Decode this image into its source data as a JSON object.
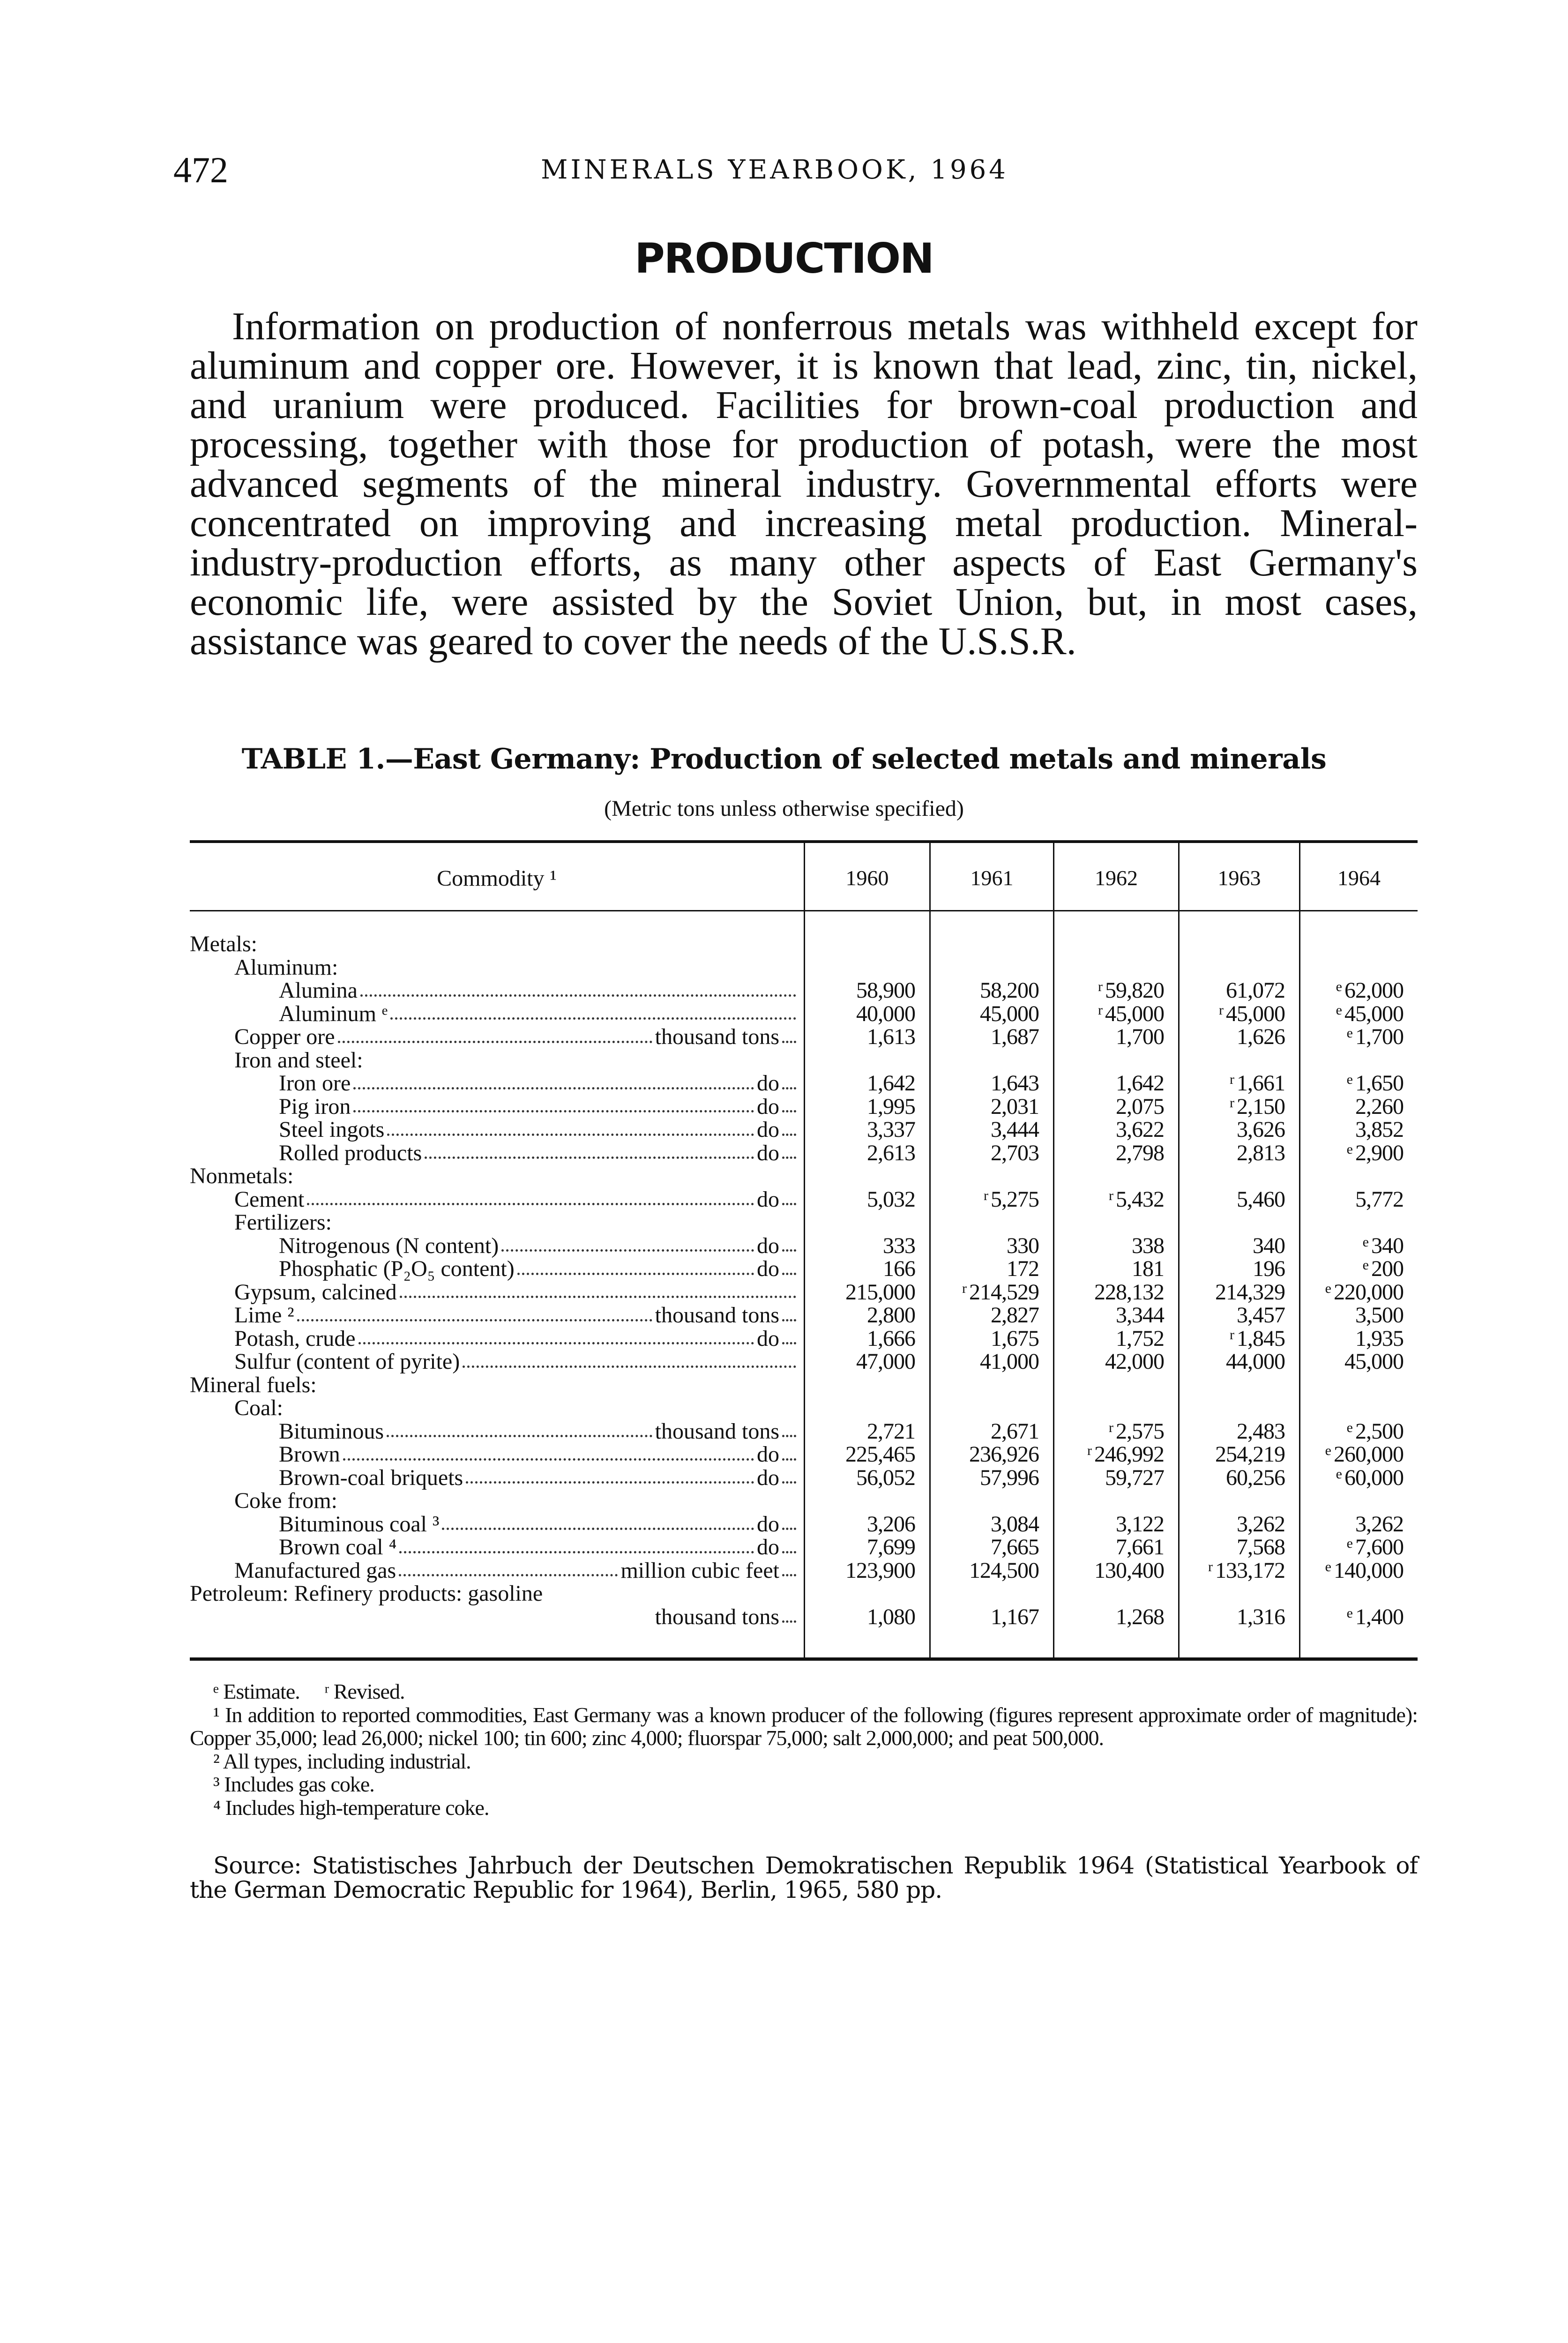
{
  "page": {
    "number": "472",
    "running_head": "MINERALS YEARBOOK, 1964",
    "section_heading": "PRODUCTION",
    "paragraph": "Information on production of nonferrous metals was withheld except for aluminum and copper ore. However, it is known that lead, zinc, tin, nickel, and uranium were produced. Facilities for brown-coal production and processing, together with those for production of potash, were the most advanced segments of the mineral industry. Governmental efforts were concentrated on improving and increasing metal production. Mineral-industry-production efforts, as many other aspects of East Germany's economic life, were assisted by the Soviet Union, but, in most cases, assistance was geared to cover the needs of the U.S.S.R."
  },
  "table": {
    "title": "TABLE 1.—East Germany: Production of selected metals and minerals",
    "subtitle": "(Metric tons unless otherwise specified)",
    "columns": [
      "Commodity ¹",
      "1960",
      "1961",
      "1962",
      "1963",
      "1964"
    ],
    "rows": [
      {
        "indent": 0,
        "label": "Metals:"
      },
      {
        "indent": 1,
        "label": "Aluminum:"
      },
      {
        "indent": 2,
        "label": "Alumina",
        "leader": true,
        "values": [
          "58,900",
          "58,200",
          "59,820",
          "61,072",
          "62,000"
        ],
        "marks": [
          "",
          "",
          "r",
          "",
          "e"
        ]
      },
      {
        "indent": 2,
        "label": "Aluminum ᵉ",
        "leader": true,
        "values": [
          "40,000",
          "45,000",
          "45,000",
          "45,000",
          "45,000"
        ],
        "marks": [
          "",
          "",
          "r",
          "r",
          "e"
        ]
      },
      {
        "indent": 1,
        "label": "Copper ore",
        "leader": true,
        "unit": "thousand tons",
        "values": [
          "1,613",
          "1,687",
          "1,700",
          "1,626",
          "1,700"
        ],
        "marks": [
          "",
          "",
          "",
          "",
          "e"
        ]
      },
      {
        "indent": 1,
        "label": "Iron and steel:"
      },
      {
        "indent": 2,
        "label": "Iron ore",
        "leader": true,
        "unit": "do",
        "values": [
          "1,642",
          "1,643",
          "1,642",
          "1,661",
          "1,650"
        ],
        "marks": [
          "",
          "",
          "",
          "r",
          "e"
        ]
      },
      {
        "indent": 2,
        "label": "Pig iron",
        "leader": true,
        "unit": "do",
        "values": [
          "1,995",
          "2,031",
          "2,075",
          "2,150",
          "2,260"
        ],
        "marks": [
          "",
          "",
          "",
          "r",
          ""
        ]
      },
      {
        "indent": 2,
        "label": "Steel ingots",
        "leader": true,
        "unit": "do",
        "values": [
          "3,337",
          "3,444",
          "3,622",
          "3,626",
          "3,852"
        ],
        "marks": [
          "",
          "",
          "",
          "",
          ""
        ]
      },
      {
        "indent": 2,
        "label": "Rolled products",
        "leader": true,
        "unit": "do",
        "values": [
          "2,613",
          "2,703",
          "2,798",
          "2,813",
          "2,900"
        ],
        "marks": [
          "",
          "",
          "",
          "",
          "e"
        ]
      },
      {
        "indent": 0,
        "label": "Nonmetals:"
      },
      {
        "indent": 1,
        "label": "Cement",
        "leader": true,
        "unit": "do",
        "values": [
          "5,032",
          "5,275",
          "5,432",
          "5,460",
          "5,772"
        ],
        "marks": [
          "",
          "r",
          "r",
          "",
          ""
        ]
      },
      {
        "indent": 1,
        "label": "Fertilizers:"
      },
      {
        "indent": 2,
        "label": "Nitrogenous (N content)",
        "leader": true,
        "unit": "do",
        "values": [
          "333",
          "330",
          "338",
          "340",
          "340"
        ],
        "marks": [
          "",
          "",
          "",
          "",
          "e"
        ]
      },
      {
        "indent": 2,
        "label": "Phosphatic (P₂O₅ content)",
        "leader": true,
        "unit": "do",
        "values": [
          "166",
          "172",
          "181",
          "196",
          "200"
        ],
        "marks": [
          "",
          "",
          "",
          "",
          "e"
        ]
      },
      {
        "indent": 1,
        "label": "Gypsum, calcined",
        "leader": true,
        "values": [
          "215,000",
          "214,529",
          "228,132",
          "214,329",
          "220,000"
        ],
        "marks": [
          "",
          "r",
          "",
          "",
          "e"
        ]
      },
      {
        "indent": 1,
        "label": "Lime ²",
        "leader": true,
        "unit": "thousand tons",
        "values": [
          "2,800",
          "2,827",
          "3,344",
          "3,457",
          "3,500"
        ],
        "marks": [
          "",
          "",
          "",
          "",
          ""
        ]
      },
      {
        "indent": 1,
        "label": "Potash, crude",
        "leader": true,
        "unit": "do",
        "values": [
          "1,666",
          "1,675",
          "1,752",
          "1,845",
          "1,935"
        ],
        "marks": [
          "",
          "",
          "",
          "r",
          ""
        ]
      },
      {
        "indent": 1,
        "label": "Sulfur (content of pyrite)",
        "leader": true,
        "values": [
          "47,000",
          "41,000",
          "42,000",
          "44,000",
          "45,000"
        ],
        "marks": [
          "",
          "",
          "",
          "",
          ""
        ]
      },
      {
        "indent": 0,
        "label": "Mineral fuels:"
      },
      {
        "indent": 1,
        "label": "Coal:"
      },
      {
        "indent": 2,
        "label": "Bituminous",
        "leader": true,
        "unit": "thousand tons",
        "values": [
          "2,721",
          "2,671",
          "2,575",
          "2,483",
          "2,500"
        ],
        "marks": [
          "",
          "",
          "r",
          "",
          "e"
        ]
      },
      {
        "indent": 2,
        "label": "Brown",
        "leader": true,
        "unit": "do",
        "values": [
          "225,465",
          "236,926",
          "246,992",
          "254,219",
          "260,000"
        ],
        "marks": [
          "",
          "",
          "r",
          "",
          "e"
        ]
      },
      {
        "indent": 2,
        "label": "Brown-coal briquets",
        "leader": true,
        "unit": "do",
        "values": [
          "56,052",
          "57,996",
          "59,727",
          "60,256",
          "60,000"
        ],
        "marks": [
          "",
          "",
          "",
          "",
          "e"
        ]
      },
      {
        "indent": 1,
        "label": "Coke from:"
      },
      {
        "indent": 2,
        "label": "Bituminous coal ³",
        "leader": true,
        "unit": "do",
        "values": [
          "3,206",
          "3,084",
          "3,122",
          "3,262",
          "3,262"
        ],
        "marks": [
          "",
          "",
          "",
          "",
          ""
        ]
      },
      {
        "indent": 2,
        "label": "Brown coal ⁴",
        "leader": true,
        "unit": "do",
        "values": [
          "7,699",
          "7,665",
          "7,661",
          "7,568",
          "7,600"
        ],
        "marks": [
          "",
          "",
          "",
          "",
          "e"
        ]
      },
      {
        "indent": 1,
        "label": "Manufactured gas",
        "leader": true,
        "unit": "million cubic feet",
        "values": [
          "123,900",
          "124,500",
          "130,400",
          "133,172",
          "140,000"
        ],
        "marks": [
          "",
          "",
          "",
          "r",
          "e"
        ]
      },
      {
        "indent": 0,
        "label": "Petroleum: Refinery products: gasoline"
      },
      {
        "indent": 0,
        "label": "",
        "unit": "thousand tons",
        "values": [
          "1,080",
          "1,167",
          "1,268",
          "1,316",
          "1,400"
        ],
        "marks": [
          "",
          "",
          "",
          "",
          "e"
        ]
      }
    ]
  },
  "footnotes": {
    "legend": "ᵉ Estimate.     ʳ Revised.",
    "items": [
      "¹ In addition to reported commodities, East Germany was a known producer of the following (figures represent approximate order of magnitude): Copper 35,000; lead 26,000; nickel 100; tin 600; zinc 4,000; fluorspar 75,000; salt 2,000,000; and peat 500,000.",
      "² All types, including industrial.",
      "³ Includes gas coke.",
      "⁴ Includes high-temperature coke."
    ],
    "source": "Source: Statistisches Jahrbuch der Deutschen Demokratischen Republik 1964 (Statistical Yearbook of the German Democratic Republic for 1964), Berlin, 1965, 580 pp."
  }
}
